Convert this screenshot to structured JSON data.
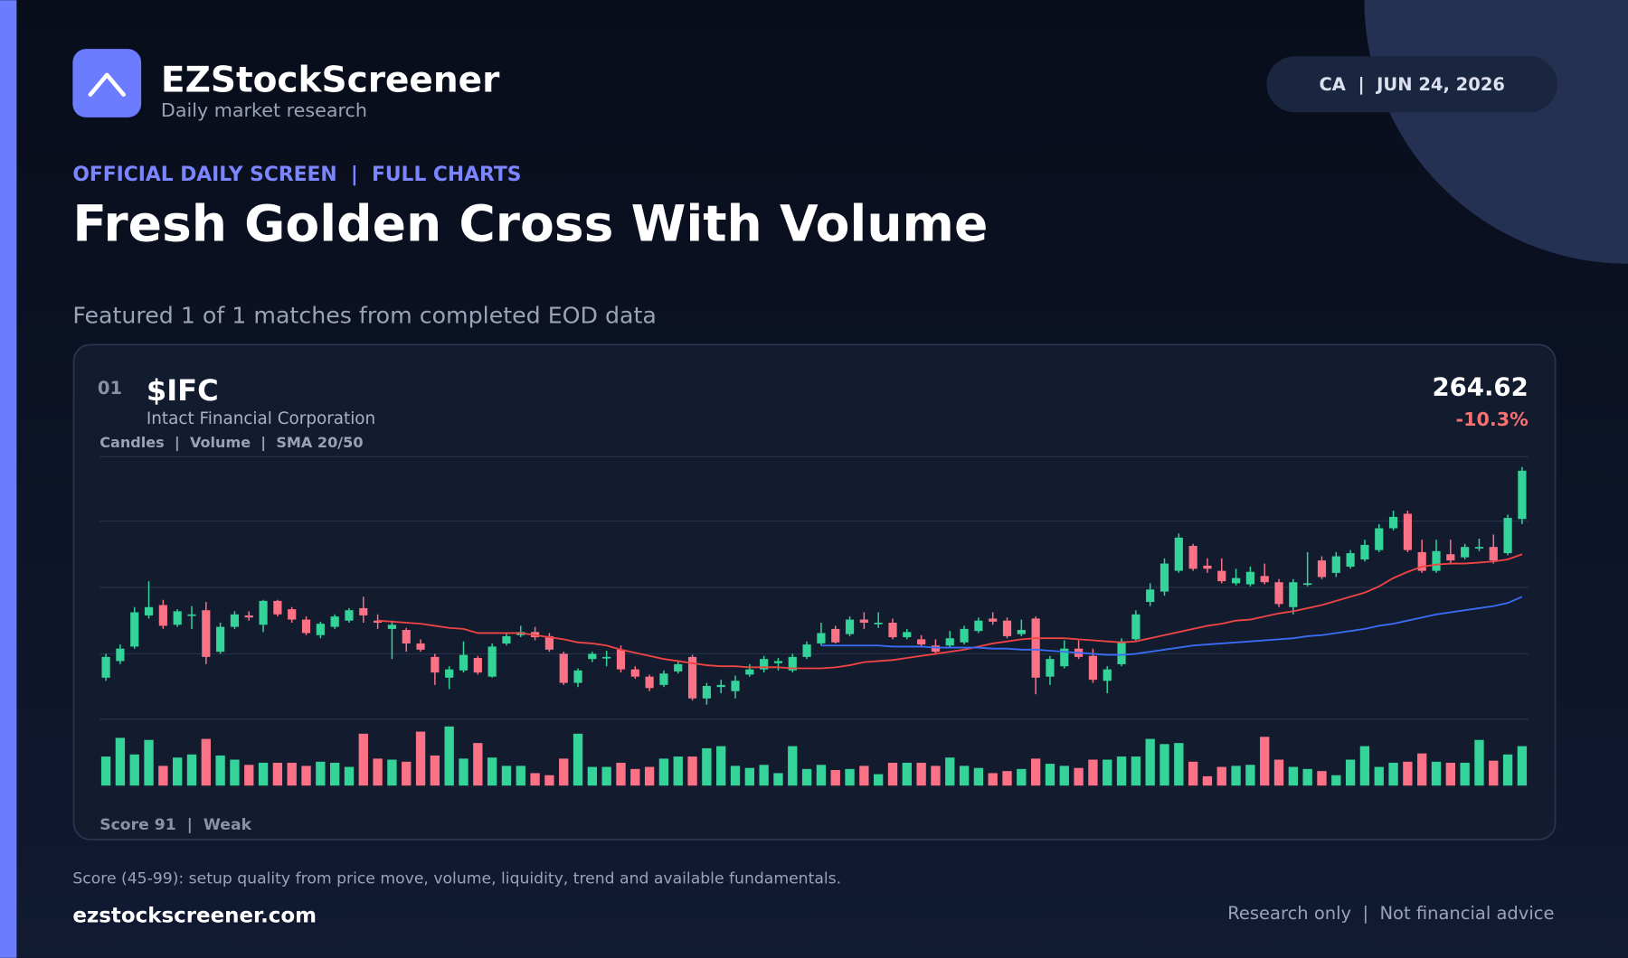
{
  "header": {
    "brand": "EZStockScreener",
    "tagline": "Daily market research",
    "badge": "CA  |  JUN 24, 2026",
    "kicker": "OFFICIAL DAILY SCREEN  |  FULL CHARTS",
    "title": "Fresh Golden Cross With Volume",
    "subtitle": "Featured 1 of 1 matches from completed EOD data"
  },
  "card": {
    "rank": "01",
    "ticker": "$IFC",
    "company": "Intact Financial Corporation",
    "chart_note": "Candles  |  Volume  |  SMA 20/50",
    "price": "264.62",
    "change": "-10.3%",
    "score": "Score 91  |  Weak"
  },
  "footer": {
    "note": "Score (45-99): setup quality from price move, volume, liquidity, trend and available fundamentals.",
    "site": "ezstockscreener.com",
    "disclaimer": "Research only  |  Not financial advice"
  },
  "chart_data": {
    "type": "candlestick",
    "up_color": "#34d399",
    "down_color": "#fb7185",
    "grid": true,
    "ylim": [
      204.75,
      268
    ],
    "yticks": [
      204.75,
      220.5,
      236.5,
      252.5,
      268
    ],
    "vlim": [
      0,
      60
    ],
    "open": [
      214.75,
      218.75,
      222.25,
      229.75,
      232.25,
      227.5,
      229.75,
      231,
      221,
      227,
      229.75,
      227.5,
      233.25,
      231.25,
      228.75,
      225,
      227,
      228.5,
      231.5,
      228.5,
      226.5,
      226.25,
      223,
      219.75,
      214.75,
      216.5,
      219.5,
      215,
      223,
      225,
      225.75,
      224.75,
      220.5,
      213.5,
      219.25,
      219.5,
      221.5,
      216.75,
      215,
      213,
      216.25,
      219.75,
      209.75,
      212.5,
      211.5,
      215.5,
      216.75,
      218.25,
      216.5,
      219.75,
      223,
      226.5,
      225.25,
      228.75,
      227.75,
      228,
      224.5,
      224,
      222.5,
      222.5,
      223.25,
      226,
      229,
      228.5,
      225.25,
      229,
      215,
      217.5,
      221.75,
      220,
      214,
      218,
      224,
      233,
      235.5,
      240.5,
      246.5,
      241.75,
      240.5,
      237.5,
      237.25,
      239.25,
      237.75,
      231.75,
      237.25,
      243,
      240,
      241.5,
      243.25,
      245.5,
      250.75,
      254.25,
      245,
      240.5,
      244.5,
      243.75,
      246,
      246.25,
      244.75,
      253
    ],
    "high": [
      220.5,
      222.75,
      231.75,
      238,
      233.5,
      231.25,
      232,
      233,
      228,
      230.75,
      230.75,
      233.5,
      233.5,
      231.75,
      229.5,
      228.25,
      230,
      231.5,
      234.25,
      230,
      228.5,
      226.75,
      224,
      220.5,
      217.5,
      223.5,
      220,
      223,
      225.5,
      227.25,
      227,
      225.5,
      221,
      217,
      221,
      221.25,
      222.5,
      217.5,
      215.5,
      216.5,
      219,
      220.25,
      213.5,
      214.25,
      215.25,
      218,
      220,
      219.5,
      220.5,
      223.5,
      228,
      227.25,
      229.5,
      230.5,
      230.5,
      229,
      226.5,
      225,
      224,
      226,
      227.25,
      229.25,
      230.5,
      229.25,
      228.75,
      229.5,
      220,
      223.75,
      223.75,
      221.75,
      217.5,
      224.25,
      231,
      237.5,
      243.5,
      249.5,
      247,
      243.5,
      243.5,
      241,
      241.5,
      242.25,
      238.5,
      238.5,
      245,
      244,
      245,
      245.5,
      248,
      251.75,
      255,
      255,
      248,
      248,
      248,
      247,
      248.25,
      249.25,
      254,
      265.5
    ],
    "low": [
      214,
      218,
      221.75,
      229,
      226.5,
      227,
      226.5,
      218,
      220.5,
      226.5,
      228.5,
      225.75,
      229.5,
      228,
      225,
      224.25,
      226.5,
      228,
      228,
      226.5,
      219.25,
      221,
      221,
      213,
      212,
      216,
      215.5,
      214.75,
      222.5,
      224.5,
      223.75,
      221,
      213,
      212.5,
      218.5,
      217.5,
      216,
      214.5,
      211.5,
      212.5,
      215.75,
      209.25,
      208.25,
      211,
      209.75,
      215,
      216,
      216.5,
      216,
      219.25,
      222.5,
      223,
      224.75,
      226.5,
      226.75,
      224,
      224,
      222,
      220.25,
      222,
      222.75,
      225.5,
      227.5,
      224.25,
      224.75,
      210.75,
      213,
      217,
      219.25,
      213.5,
      211,
      217.5,
      223.5,
      232,
      234.5,
      240,
      240.5,
      240,
      237.5,
      237,
      236.75,
      237.25,
      231.75,
      230,
      236.75,
      238.5,
      239,
      241,
      242.75,
      245,
      250.25,
      245,
      240,
      240,
      242,
      243.25,
      245.25,
      242.25,
      244.25,
      251.75
    ],
    "close": [
      219.75,
      221.75,
      230.5,
      231.75,
      227.25,
      230.75,
      230,
      219.75,
      227,
      230,
      229.25,
      233.25,
      230,
      228.75,
      225.5,
      227.75,
      229.5,
      231,
      229.75,
      228,
      227.5,
      223,
      221.5,
      216,
      216.75,
      220.25,
      216,
      222.25,
      224.75,
      225.75,
      224.5,
      221.5,
      213.5,
      216.5,
      220.5,
      219.75,
      216.75,
      215,
      212.25,
      215.75,
      218,
      209.75,
      212.75,
      213,
      214,
      216.75,
      219.25,
      218.75,
      219.75,
      222.75,
      225.5,
      223.25,
      228.75,
      228,
      228,
      224.5,
      225.75,
      222.75,
      221,
      224.25,
      226.5,
      228.5,
      228.25,
      224.75,
      226.25,
      214.75,
      219.25,
      221.75,
      219.75,
      214.25,
      216.75,
      223.5,
      230,
      236,
      242.25,
      248.5,
      241,
      241,
      238,
      238.75,
      240.25,
      237.75,
      232.5,
      237.75,
      237.5,
      239,
      244,
      244.75,
      246.75,
      250.75,
      253.5,
      245.5,
      240.5,
      245.25,
      243,
      246.25,
      246.25,
      243,
      253.25,
      264.62
    ],
    "volume": [
      28,
      46,
      30,
      44,
      19,
      27,
      30,
      45,
      29,
      25,
      20,
      22,
      22,
      22,
      19,
      23,
      22,
      18,
      50,
      26,
      25,
      23,
      52,
      29,
      57,
      26,
      41,
      27,
      19,
      19,
      12,
      10,
      26,
      50,
      18,
      18,
      22,
      16,
      18,
      26,
      28,
      28,
      36,
      38,
      19,
      17,
      20,
      12,
      38,
      16,
      20,
      15,
      16,
      19,
      11,
      22,
      22,
      22,
      19,
      27,
      19,
      17,
      12,
      14,
      16,
      26,
      21,
      19,
      17,
      25,
      25,
      28,
      28,
      45,
      40,
      41,
      23,
      9,
      18,
      19,
      20,
      47,
      25,
      18,
      16,
      14,
      10,
      25,
      38,
      18,
      22,
      23,
      31,
      23,
      22,
      22,
      44,
      24,
      30,
      38
    ],
    "series": [
      {
        "color": "#ef4444",
        "values": [
          null,
          null,
          null,
          null,
          null,
          null,
          null,
          null,
          null,
          null,
          null,
          null,
          null,
          null,
          null,
          null,
          null,
          null,
          null,
          228.5,
          228.25,
          228,
          227.75,
          227.25,
          226.75,
          226.5,
          225.5,
          225.5,
          225.5,
          225.5,
          225,
          224.5,
          224,
          223.25,
          223,
          222.5,
          221.5,
          220.75,
          220,
          219.25,
          218.75,
          218.25,
          217.75,
          217.5,
          217.5,
          217.25,
          217.25,
          217.25,
          217,
          217,
          217,
          217.25,
          217.75,
          218.5,
          218.75,
          219,
          219.5,
          220,
          220.5,
          221,
          221.5,
          222.25,
          223,
          223.5,
          224,
          224.25,
          224.25,
          224.25,
          224,
          223.75,
          223.5,
          223.25,
          223.5,
          224.25,
          225,
          225.75,
          226.5,
          227.25,
          227.75,
          228.5,
          228.75,
          229.5,
          230.25,
          230.75,
          231.5,
          232.25,
          233.25,
          234.25,
          235.25,
          236.75,
          238.75,
          240.25,
          241.5,
          242,
          242.25,
          242.25,
          242.5,
          242.75,
          243.25,
          244.5
        ]
      },
      {
        "color": "#3b6cf6",
        "values": [
          null,
          null,
          null,
          null,
          null,
          null,
          null,
          null,
          null,
          null,
          null,
          null,
          null,
          null,
          null,
          null,
          null,
          null,
          null,
          null,
          null,
          null,
          null,
          null,
          null,
          null,
          null,
          null,
          null,
          null,
          null,
          null,
          null,
          null,
          null,
          null,
          null,
          null,
          null,
          null,
          null,
          null,
          null,
          null,
          null,
          null,
          null,
          null,
          null,
          null,
          222.5,
          222.5,
          222.5,
          222.5,
          222.5,
          222.25,
          222.25,
          222.25,
          222,
          222,
          222,
          222,
          221.75,
          221.75,
          221.5,
          221.5,
          221.25,
          221,
          220.75,
          220.5,
          220.25,
          220.25,
          220.5,
          221,
          221.5,
          222,
          222.5,
          222.75,
          223,
          223.25,
          223.5,
          223.75,
          224,
          224.25,
          224.75,
          225,
          225.5,
          226,
          226.5,
          227.25,
          227.75,
          228.5,
          229.25,
          230,
          230.5,
          231,
          231.5,
          232,
          232.75,
          234.25
        ]
      }
    ]
  }
}
